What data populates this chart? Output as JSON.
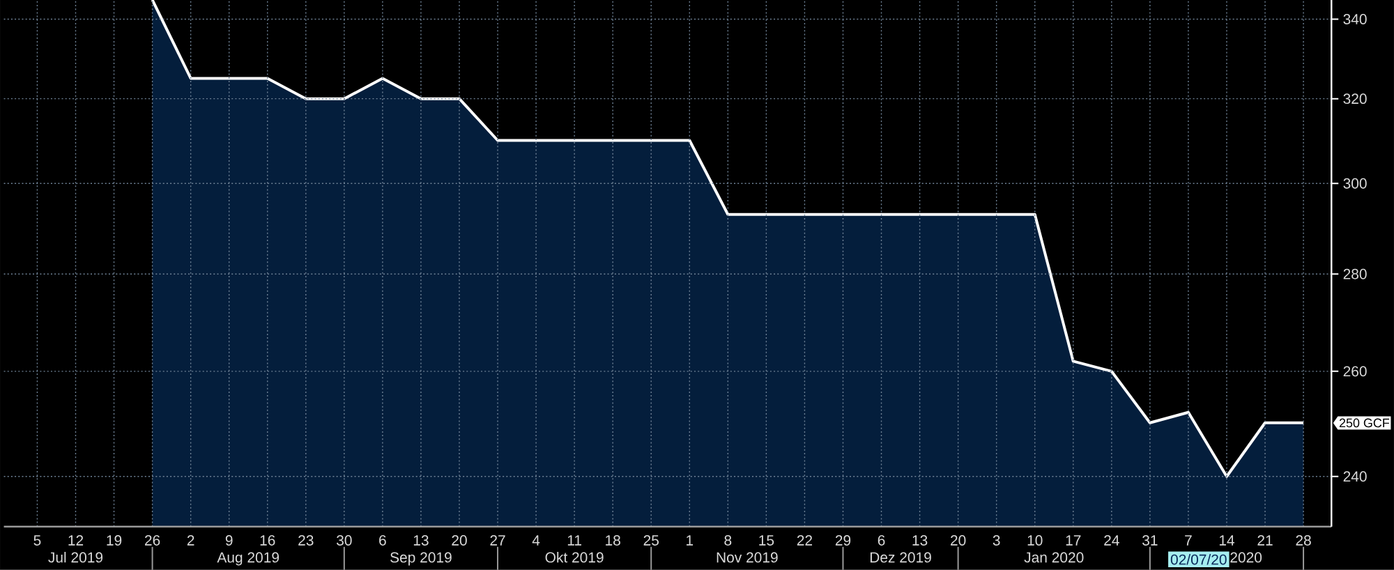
{
  "chart_data": {
    "type": "area",
    "categories": [
      "5",
      "12",
      "19",
      "26",
      "2",
      "9",
      "16",
      "23",
      "30",
      "6",
      "13",
      "20",
      "27",
      "4",
      "11",
      "18",
      "25",
      "1",
      "8",
      "15",
      "22",
      "29",
      "6",
      "13",
      "20",
      "3",
      "10",
      "17",
      "24",
      "31",
      "7",
      "14",
      "21",
      "28"
    ],
    "series": [
      {
        "color": "#041e3c",
        "values": [
          null,
          null,
          null,
          345,
          325,
          325,
          325,
          320,
          320,
          325,
          320,
          320,
          310,
          310,
          310,
          310,
          310,
          310,
          293,
          293,
          293,
          293,
          293,
          293,
          293,
          293,
          293,
          262,
          260,
          250,
          252,
          240,
          250,
          250
        ]
      }
    ],
    "ylim": [
      231,
      345
    ],
    "yticks": [
      240,
      260,
      280,
      300,
      320,
      340
    ],
    "log": true,
    "grid": true,
    "annotations": [
      "Jul 2019",
      "Aug 2019",
      "Sep 2019",
      "Okt 2019",
      "Nov 2019",
      "Dez 2019",
      "Jan 2020",
      "2020",
      "02/07/20",
      {
        "text": "250 GCF",
        "x": "28",
        "y": 250
      }
    ]
  }
}
